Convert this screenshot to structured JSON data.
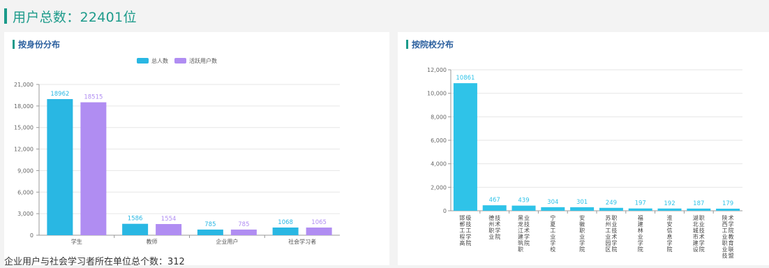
{
  "header": {
    "title": "用户总数：22401位"
  },
  "footer": {
    "text": "企业用户与社会学习者所在单位总个数：312"
  },
  "left_panel": {
    "title": "按身份分布"
  },
  "right_panel": {
    "title": "按院校分布"
  },
  "colors": {
    "series_total": "#29b7e3",
    "series_active": "#b08df2",
    "bar_right": "#2fc3e8",
    "accent": "#1a9a8a"
  },
  "chart_data": [
    {
      "type": "bar",
      "title": "",
      "categories": [
        "学生",
        "教师",
        "企业用户",
        "社会学习者"
      ],
      "series": [
        {
          "name": "总人数",
          "values": [
            18962,
            1586,
            785,
            1068
          ]
        },
        {
          "name": "活跃用户数",
          "values": [
            18515,
            1554,
            785,
            1065
          ]
        }
      ],
      "ylim": [
        0,
        21000
      ],
      "yticks": [
        0,
        3000,
        6000,
        9000,
        12000,
        15000,
        18000,
        21000
      ],
      "ytick_labels": [
        "0",
        "3,000",
        "6,000",
        "9,000",
        "12,000",
        "15,000",
        "18,000",
        "21,000"
      ],
      "legend": "top-center",
      "grid": true
    },
    {
      "type": "bar",
      "title": "",
      "categories": [
        "邯郸工程高级技工学院",
        "德州职业技术学院",
        "黑龙江建筑职业技术学院",
        "宁夏工业学校",
        "安徽职业学院",
        "苏州工业园区职业技术学院",
        "福建林业学院",
        "淮安信息学院",
        "湖北城市建设职业技术学院",
        "陕西工业职业技术学院教育联盟"
      ],
      "values": [
        10861,
        467,
        439,
        304,
        301,
        249,
        197,
        192,
        187,
        179
      ],
      "ylim": [
        0,
        12000
      ],
      "yticks": [
        0,
        2000,
        4000,
        6000,
        8000,
        10000,
        12000
      ],
      "ytick_labels": [
        "0",
        "2,000",
        "4,000",
        "6,000",
        "8,000",
        "10,000",
        "12,000"
      ],
      "grid": true
    }
  ]
}
